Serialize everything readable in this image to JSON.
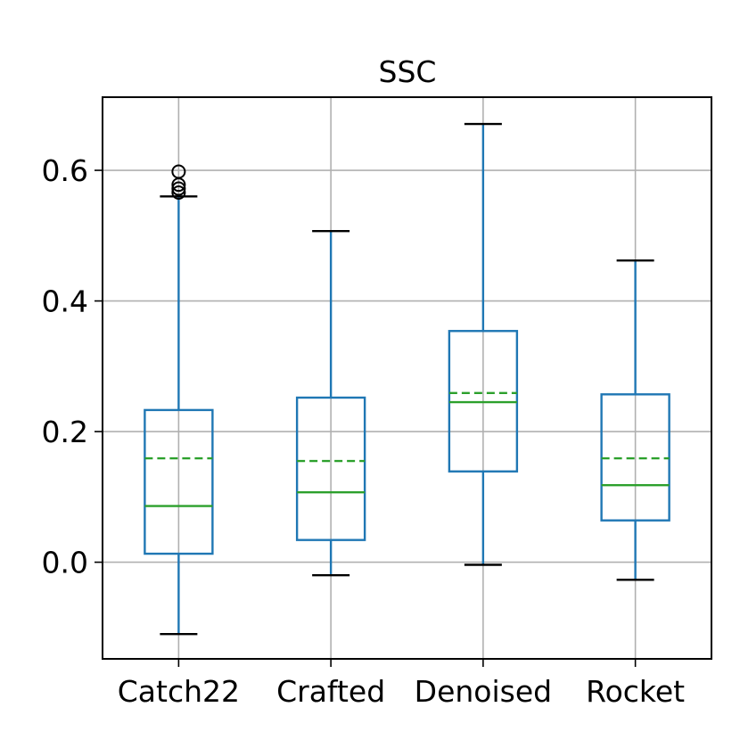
{
  "chart_data": {
    "type": "boxplot",
    "title": "SSC",
    "xlabel": "",
    "ylabel": "",
    "categories": [
      "Catch22",
      "Crafted",
      "Denoised",
      "Rocket"
    ],
    "yticks": [
      0.0,
      0.2,
      0.4,
      0.6
    ],
    "ytick_labels": [
      "0.0",
      "0.2",
      "0.4",
      "0.6"
    ],
    "ylim": [
      -0.148,
      0.712
    ],
    "grid": true,
    "boxes": [
      {
        "name": "Catch22",
        "whisker_low": -0.11,
        "q1": 0.013,
        "median": 0.086,
        "mean": 0.159,
        "q3": 0.233,
        "whisker_high": 0.56,
        "outliers": [
          0.566,
          0.572,
          0.578,
          0.598
        ]
      },
      {
        "name": "Crafted",
        "whisker_low": -0.02,
        "q1": 0.034,
        "median": 0.107,
        "mean": 0.155,
        "q3": 0.252,
        "whisker_high": 0.507,
        "outliers": []
      },
      {
        "name": "Denoised",
        "whisker_low": -0.004,
        "q1": 0.139,
        "median": 0.245,
        "mean": 0.259,
        "q3": 0.354,
        "whisker_high": 0.671,
        "outliers": []
      },
      {
        "name": "Rocket",
        "whisker_low": -0.027,
        "q1": 0.064,
        "median": 0.118,
        "mean": 0.159,
        "q3": 0.257,
        "whisker_high": 0.462,
        "outliers": []
      }
    ],
    "colors": {
      "box": "#1f77b4",
      "median": "#2ca02c",
      "mean": "#2ca02c",
      "grid": "#b0b0b0",
      "whisker_cap": "#000000"
    }
  }
}
